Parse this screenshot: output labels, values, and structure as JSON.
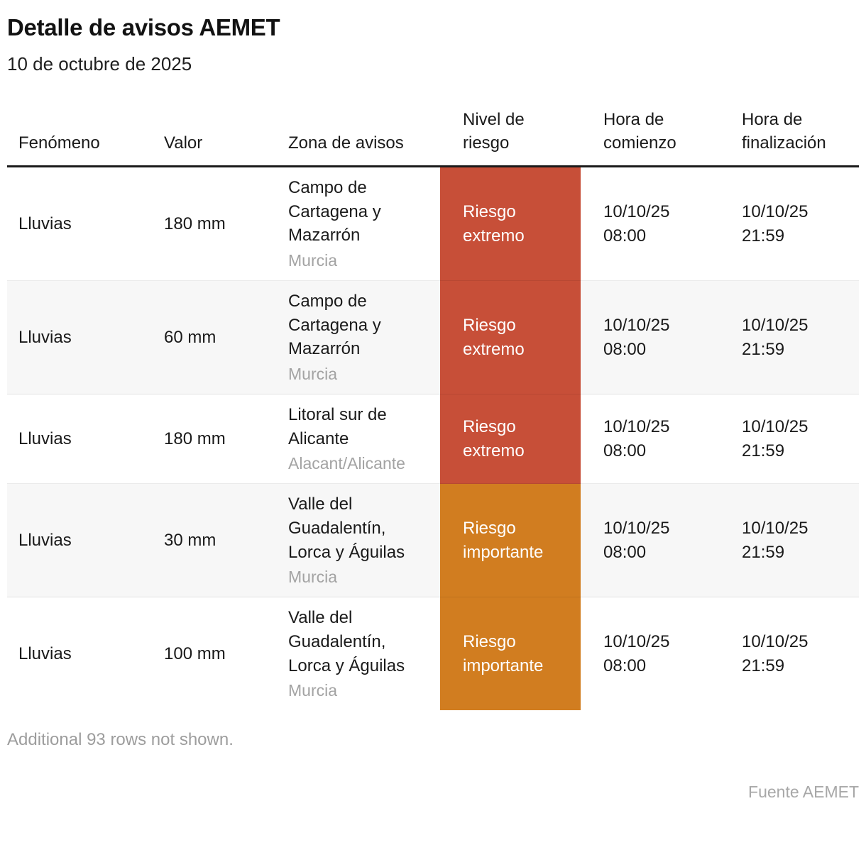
{
  "header": {
    "title": "Detalle de avisos AEMET",
    "subtitle": "10 de octubre de 2025"
  },
  "colors": {
    "risk_extreme": "#c74f38",
    "risk_important": "#d17d20",
    "alt_row_background": "#f7f7f7",
    "header_rule": "#1a1a1a",
    "sublabel_gray": "#a3a3a3"
  },
  "table": {
    "columns": [
      "Fenómeno",
      "Valor",
      "Zona de avisos",
      "Nivel de riesgo",
      "Hora de comienzo",
      "Hora de finalización"
    ],
    "rows": [
      {
        "fenomeno": "Lluvias",
        "valor": "180 mm",
        "zona": "Campo de Cartagena y Mazarrón",
        "region": "Murcia",
        "nivel": "Riesgo extremo",
        "nivel_color": "#c74f38",
        "comienzo_date": "10/10/25",
        "comienzo_time": "08:00",
        "fin_date": "10/10/25",
        "fin_time": "21:59"
      },
      {
        "fenomeno": "Lluvias",
        "valor": "60 mm",
        "zona": "Campo de Cartagena y Mazarrón",
        "region": "Murcia",
        "nivel": "Riesgo extremo",
        "nivel_color": "#c74f38",
        "comienzo_date": "10/10/25",
        "comienzo_time": "08:00",
        "fin_date": "10/10/25",
        "fin_time": "21:59"
      },
      {
        "fenomeno": "Lluvias",
        "valor": "180 mm",
        "zona": "Litoral sur de Alicante",
        "region": "Alacant/Alicante",
        "nivel": "Riesgo extremo",
        "nivel_color": "#c74f38",
        "comienzo_date": "10/10/25",
        "comienzo_time": "08:00",
        "fin_date": "10/10/25",
        "fin_time": "21:59"
      },
      {
        "fenomeno": "Lluvias",
        "valor": "30 mm",
        "zona": "Valle del Guadalentín, Lorca y Águilas",
        "region": "Murcia",
        "nivel": "Riesgo importante",
        "nivel_color": "#d17d20",
        "comienzo_date": "10/10/25",
        "comienzo_time": "08:00",
        "fin_date": "10/10/25",
        "fin_time": "21:59"
      },
      {
        "fenomeno": "Lluvias",
        "valor": "100 mm",
        "zona": "Valle del Guadalentín, Lorca y Águilas",
        "region": "Murcia",
        "nivel": "Riesgo importante",
        "nivel_color": "#d17d20",
        "comienzo_date": "10/10/25",
        "comienzo_time": "08:00",
        "fin_date": "10/10/25",
        "fin_time": "21:59"
      }
    ]
  },
  "footer": {
    "note": "Additional 93 rows not shown.",
    "source": "Fuente AEMET"
  },
  "chart_data": {
    "type": "table",
    "title": "Detalle de avisos AEMET",
    "subtitle": "10 de octubre de 2025",
    "columns": [
      "Fenómeno",
      "Valor",
      "Zona de avisos",
      "Nivel de riesgo",
      "Hora de comienzo",
      "Hora de finalización"
    ],
    "rows": [
      [
        "Lluvias",
        "180 mm",
        "Campo de Cartagena y Mazarrón (Murcia)",
        "Riesgo extremo",
        "10/10/25 08:00",
        "10/10/25 21:59"
      ],
      [
        "Lluvias",
        "60 mm",
        "Campo de Cartagena y Mazarrón (Murcia)",
        "Riesgo extremo",
        "10/10/25 08:00",
        "10/10/25 21:59"
      ],
      [
        "Lluvias",
        "180 mm",
        "Litoral sur de Alicante (Alacant/Alicante)",
        "Riesgo extremo",
        "10/10/25 08:00",
        "10/10/25 21:59"
      ],
      [
        "Lluvias",
        "30 mm",
        "Valle del Guadalentín, Lorca y Águilas (Murcia)",
        "Riesgo importante",
        "10/10/25 08:00",
        "10/10/25 21:59"
      ],
      [
        "Lluvias",
        "100 mm",
        "Valle del Guadalentín, Lorca y Águilas (Murcia)",
        "Riesgo importante",
        "10/10/25 08:00",
        "10/10/25 21:59"
      ]
    ],
    "risk_level_colors": {
      "Riesgo extremo": "#c74f38",
      "Riesgo importante": "#d17d20"
    },
    "notes": "Additional 93 rows not shown.",
    "source": "Fuente AEMET"
  }
}
